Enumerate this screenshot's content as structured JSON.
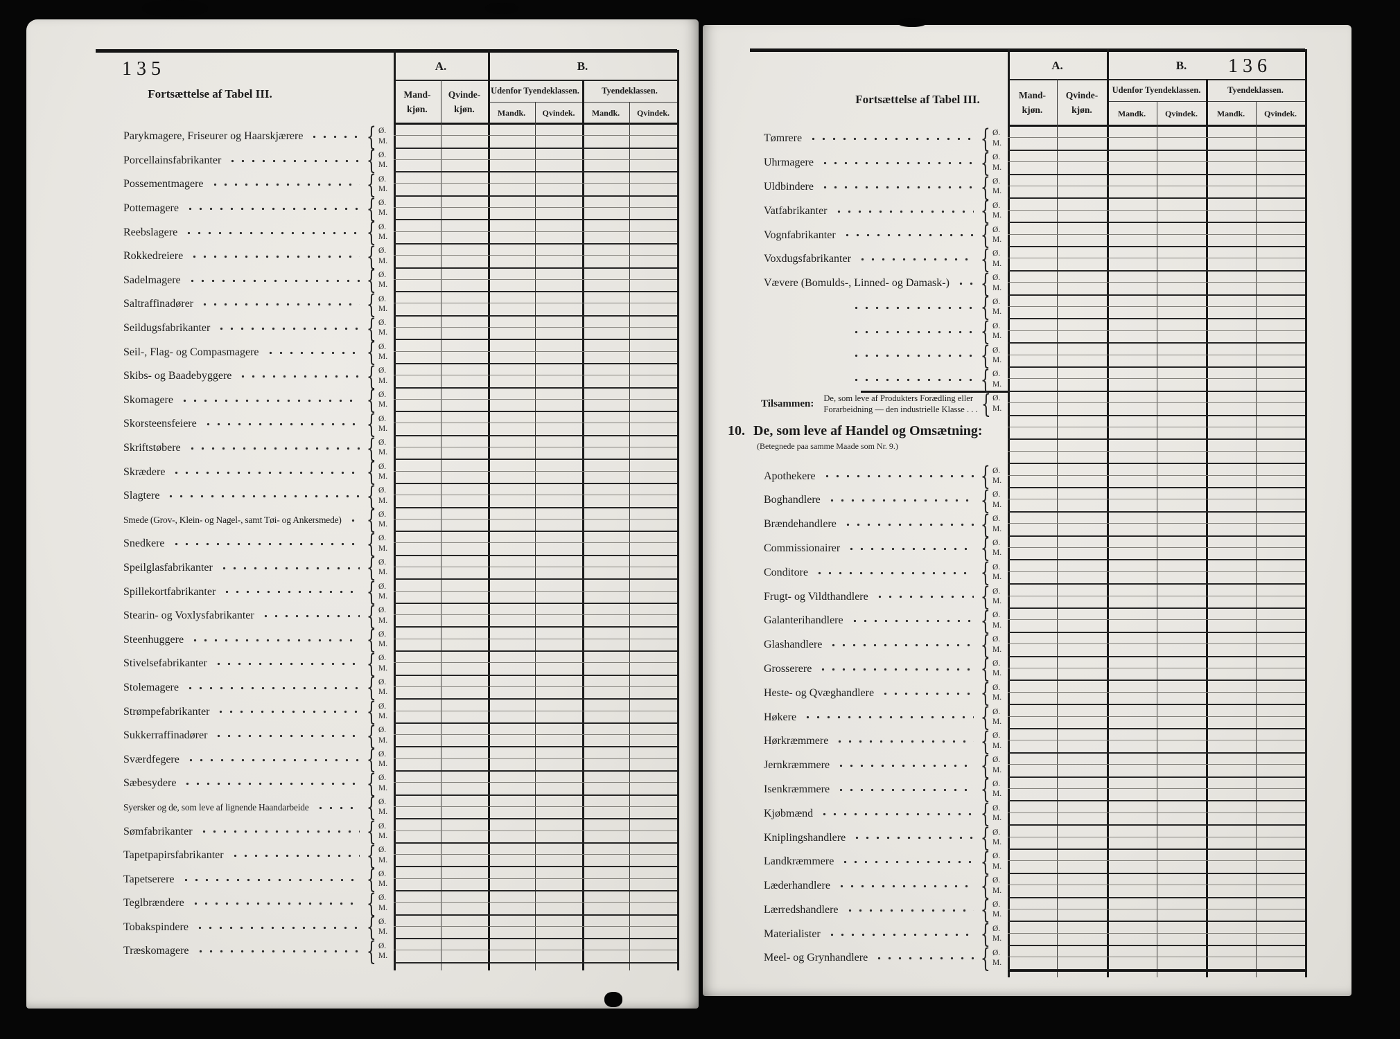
{
  "colors": {
    "paper": "#e8e6e1",
    "ink": "#1c1c1c",
    "line": "#262626",
    "bg": "#060606"
  },
  "marks": {
    "top": "Ø.",
    "bottom": "M.",
    "brace": "{"
  },
  "table_header": {
    "col_a": "A.",
    "col_b": "B.",
    "mand": "Mand-\nkjøn.",
    "qvinde": "Qvinde-\nkjøn.",
    "udenfor": "Udenfor Tyendeklassen.",
    "tyende": "Tyendeklassen.",
    "mandk": "Mandk.",
    "qvindek": "Qvindek."
  },
  "page_left": {
    "page_number": "135",
    "title": "Fortsættelse af Tabel III.",
    "rows": [
      "Parykmagere, Friseurer og Haarskjærere",
      "Porcellainsfabrikanter",
      "Possementmagere",
      "Pottemagere",
      "Reebslagere",
      "Rokkedreiere",
      "Sadelmagere",
      "Saltraffinadører",
      "Seildugsfabrikanter",
      "Seil-, Flag- og Compasmagere",
      "Skibs- og Baadebyggere",
      "Skomagere",
      "Skorsteensfeiere",
      "Skriftstøbere",
      "Skrædere",
      "Slagtere",
      "Smede (Grov-, Klein- og Nagel-, samt Tøi- og Ankersmede)",
      "Snedkere",
      "Speilglasfabrikanter",
      "Spillekortfabrikanter",
      "Stearin- og Voxlysfabrikanter",
      "Steenhuggere",
      "Stivelsefabrikanter",
      "Stolemagere",
      "Strømpefabrikanter",
      "Sukkerraffinadører",
      "Sværdfegere",
      "Sæbesydere",
      "Syersker og de, som leve af lignende Haandarbeide",
      "Sømfabrikanter",
      "Tapetpapirsfabrikanter",
      "Tapetserere",
      "Teglbrændere",
      "Tobakspindere",
      "Træskomagere"
    ]
  },
  "page_right": {
    "page_number": "136",
    "title": "Fortsættelse af Tabel III.",
    "rows_top": [
      "Tømrere",
      "Uhrmagere",
      "Uldbindere",
      "Vatfabrikanter",
      "Vognfabrikanter",
      "Voxdugsfabrikanter",
      "Vævere (Bomulds-, Linned- og Damask-)"
    ],
    "sum_row": {
      "prefix": "Tilsammen:",
      "line1": "De, som leve af Produkters Forædling eller",
      "line2": "Forarbeidning — den industrielle Klasse . . ."
    },
    "section_heading": {
      "number": "10.",
      "title": "De, som leve af Handel og Omsætning:",
      "subtitle": "(Betegnede paa samme Maade som Nr. 9.)"
    },
    "rows_handel": [
      "Apothekere",
      "Boghandlere",
      "Brændehandlere",
      "Commissionairer",
      "Conditore",
      "Frugt- og Vildthandlere",
      "Galanterihandlere",
      "Glashandlere",
      "Grosserere",
      "Heste- og Qvæghandlere",
      "Høkere",
      "Hørkræmmere",
      "Jernkræmmere",
      "Isenkræmmere",
      "Kjøbmænd",
      "Kniplingshandlere",
      "Landkræmmere",
      "Læderhandlere",
      "Lærredshandlere",
      "Materialister",
      "Meel- og Grynhandlere"
    ]
  }
}
